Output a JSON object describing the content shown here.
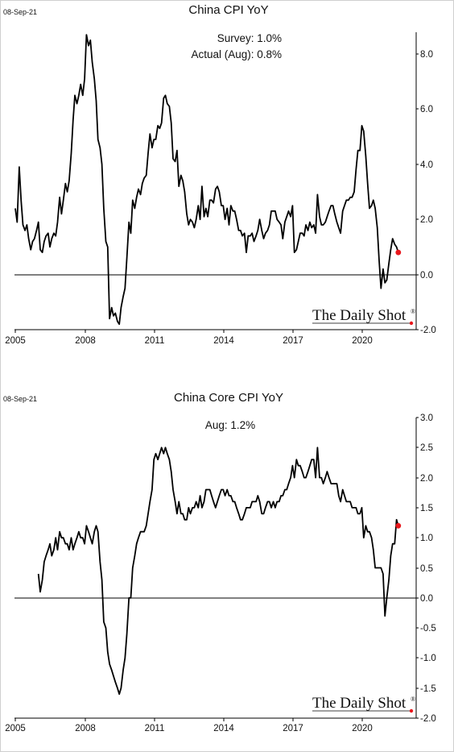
{
  "chart_data": [
    {
      "type": "line",
      "date_stamp": "08-Sep-21",
      "title": "China CPI YoY",
      "annotations": [
        "Survey:  1.0%",
        "Actual (Aug):  0.8%"
      ],
      "brand": "The Daily Shot",
      "brand_mark": "®",
      "x_ticks": [
        "2005",
        "2008",
        "2011",
        "2014",
        "2017",
        "2020"
      ],
      "y_ticks": [
        "8.0",
        "6.0",
        "4.0",
        "2.0",
        "0.0",
        "-2.0"
      ],
      "xlim": [
        2005.0,
        2022.3
      ],
      "ylim": [
        -2.0,
        9.0
      ],
      "grid": false,
      "zero_line": true,
      "line_color": "#000000",
      "marker_color": "#e8171c",
      "series": [
        {
          "x": [
            2005.0,
            2005.08,
            2005.17,
            2005.25,
            2005.33,
            2005.42,
            2005.5,
            2005.58,
            2005.67,
            2005.75,
            2005.83,
            2005.92,
            2006.0,
            2006.08,
            2006.17,
            2006.25,
            2006.33,
            2006.42,
            2006.5,
            2006.58,
            2006.67,
            2006.75,
            2006.83,
            2006.92,
            2007.0,
            2007.08,
            2007.17,
            2007.25,
            2007.33,
            2007.42,
            2007.5,
            2007.58,
            2007.67,
            2007.75,
            2007.83,
            2007.92,
            2008.0,
            2008.08,
            2008.17,
            2008.25,
            2008.33,
            2008.42,
            2008.5,
            2008.58,
            2008.67,
            2008.75,
            2008.83,
            2008.92,
            2009.0,
            2009.08,
            2009.17,
            2009.25,
            2009.33,
            2009.42,
            2009.5,
            2009.58,
            2009.67,
            2009.75,
            2009.83,
            2009.92,
            2010.0,
            2010.08,
            2010.17,
            2010.25,
            2010.33,
            2010.42,
            2010.5,
            2010.58,
            2010.67,
            2010.75,
            2010.83,
            2010.92,
            2011.0,
            2011.08,
            2011.17,
            2011.25,
            2011.33,
            2011.42,
            2011.5,
            2011.58,
            2011.67,
            2011.75,
            2011.83,
            2011.92,
            2012.0,
            2012.08,
            2012.17,
            2012.25,
            2012.33,
            2012.42,
            2012.5,
            2012.58,
            2012.67,
            2012.75,
            2012.83,
            2012.92,
            2013.0,
            2013.08,
            2013.17,
            2013.25,
            2013.33,
            2013.42,
            2013.5,
            2013.58,
            2013.67,
            2013.75,
            2013.83,
            2013.92,
            2014.0,
            2014.08,
            2014.17,
            2014.25,
            2014.33,
            2014.42,
            2014.5,
            2014.58,
            2014.67,
            2014.75,
            2014.83,
            2014.92,
            2015.0,
            2015.08,
            2015.17,
            2015.25,
            2015.33,
            2015.42,
            2015.5,
            2015.58,
            2015.67,
            2015.75,
            2015.83,
            2015.92,
            2016.0,
            2016.08,
            2016.17,
            2016.25,
            2016.33,
            2016.42,
            2016.5,
            2016.58,
            2016.67,
            2016.75,
            2016.83,
            2016.92,
            2017.0,
            2017.08,
            2017.17,
            2017.25,
            2017.33,
            2017.42,
            2017.5,
            2017.58,
            2017.67,
            2017.75,
            2017.83,
            2017.92,
            2018.0,
            2018.08,
            2018.17,
            2018.25,
            2018.33,
            2018.42,
            2018.5,
            2018.58,
            2018.67,
            2018.75,
            2018.83,
            2018.92,
            2019.0,
            2019.08,
            2019.17,
            2019.25,
            2019.33,
            2019.42,
            2019.5,
            2019.58,
            2019.67,
            2019.75,
            2019.83,
            2019.92,
            2020.0,
            2020.08,
            2020.17,
            2020.25,
            2020.33,
            2020.42,
            2020.5,
            2020.58,
            2020.67,
            2020.75,
            2020.83,
            2020.92,
            2021.0,
            2021.08,
            2021.17,
            2021.25,
            2021.33,
            2021.42,
            2021.5,
            2021.58
          ],
          "y": [
            2.4,
            1.9,
            3.9,
            2.7,
            1.8,
            1.6,
            1.8,
            1.3,
            0.9,
            1.2,
            1.3,
            1.6,
            1.9,
            0.9,
            0.8,
            1.2,
            1.4,
            1.5,
            1.0,
            1.3,
            1.5,
            1.4,
            1.9,
            2.8,
            2.2,
            2.7,
            3.3,
            3.0,
            3.4,
            4.4,
            5.6,
            6.5,
            6.2,
            6.5,
            6.9,
            6.5,
            7.1,
            8.7,
            8.3,
            8.5,
            7.7,
            7.1,
            6.3,
            4.9,
            4.6,
            4.0,
            2.4,
            1.2,
            1.0,
            -1.6,
            -1.2,
            -1.5,
            -1.4,
            -1.7,
            -1.8,
            -1.2,
            -0.8,
            -0.5,
            0.6,
            1.9,
            1.5,
            2.7,
            2.4,
            2.8,
            3.1,
            2.9,
            3.3,
            3.5,
            3.6,
            4.4,
            5.1,
            4.6,
            4.9,
            4.9,
            5.4,
            5.3,
            5.5,
            6.4,
            6.5,
            6.2,
            6.1,
            5.5,
            4.2,
            4.1,
            4.5,
            3.2,
            3.6,
            3.4,
            3.0,
            2.2,
            1.8,
            2.0,
            1.9,
            1.7,
            2.0,
            2.5,
            2.0,
            3.2,
            2.1,
            2.4,
            2.1,
            2.7,
            2.7,
            2.6,
            3.1,
            3.2,
            3.0,
            2.5,
            2.5,
            2.0,
            2.4,
            1.8,
            2.5,
            2.3,
            2.3,
            2.0,
            1.6,
            1.6,
            1.4,
            1.5,
            0.8,
            1.4,
            1.4,
            1.5,
            1.2,
            1.4,
            1.6,
            2.0,
            1.6,
            1.3,
            1.5,
            1.6,
            1.8,
            2.3,
            2.3,
            2.3,
            2.0,
            1.9,
            1.8,
            1.3,
            1.9,
            2.1,
            2.3,
            2.1,
            2.5,
            0.8,
            0.9,
            1.2,
            1.5,
            1.5,
            1.4,
            1.8,
            1.6,
            1.9,
            1.7,
            1.8,
            1.5,
            2.9,
            2.1,
            1.8,
            1.8,
            1.9,
            2.1,
            2.3,
            2.5,
            2.5,
            2.2,
            1.9,
            1.7,
            1.5,
            2.3,
            2.5,
            2.7,
            2.7,
            2.8,
            2.8,
            3.0,
            3.8,
            4.5,
            4.5,
            5.4,
            5.2,
            4.3,
            3.3,
            2.4,
            2.5,
            2.7,
            2.4,
            1.7,
            0.5,
            -0.5,
            0.2,
            -0.3,
            -0.2,
            0.4,
            0.9,
            1.3,
            1.1,
            1.0,
            0.8
          ]
        }
      ],
      "last_point": {
        "x": 2021.58,
        "y": 0.8
      }
    },
    {
      "type": "line",
      "date_stamp": "08-Sep-21",
      "title": "China Core CPI YoY",
      "annotations": [
        "Aug:    1.2%"
      ],
      "brand": "The Daily Shot",
      "brand_mark": "®",
      "x_ticks": [
        "2005",
        "2008",
        "2011",
        "2014",
        "2017",
        "2020"
      ],
      "y_ticks": [
        "3.0",
        "2.5",
        "2.0",
        "1.5",
        "1.0",
        "0.5",
        "0.0",
        "-0.5",
        "-1.0",
        "-1.5",
        "-2.0"
      ],
      "xlim": [
        2005.0,
        2022.3
      ],
      "ylim": [
        -2.0,
        3.0
      ],
      "grid": false,
      "zero_line": true,
      "line_color": "#000000",
      "marker_color": "#e8171c",
      "series": [
        {
          "x": [
            2006.0,
            2006.08,
            2006.17,
            2006.25,
            2006.33,
            2006.42,
            2006.5,
            2006.58,
            2006.67,
            2006.75,
            2006.83,
            2006.92,
            2007.0,
            2007.08,
            2007.17,
            2007.25,
            2007.33,
            2007.42,
            2007.5,
            2007.58,
            2007.67,
            2007.75,
            2007.83,
            2007.92,
            2008.0,
            2008.08,
            2008.17,
            2008.25,
            2008.33,
            2008.42,
            2008.5,
            2008.58,
            2008.67,
            2008.75,
            2008.83,
            2008.92,
            2009.0,
            2009.08,
            2009.17,
            2009.25,
            2009.33,
            2009.42,
            2009.5,
            2009.58,
            2009.67,
            2009.75,
            2009.83,
            2009.92,
            2010.0,
            2010.08,
            2010.17,
            2010.25,
            2010.33,
            2010.42,
            2010.5,
            2010.58,
            2010.67,
            2010.75,
            2010.83,
            2010.92,
            2011.0,
            2011.08,
            2011.17,
            2011.25,
            2011.33,
            2011.42,
            2011.5,
            2011.58,
            2011.67,
            2011.75,
            2011.83,
            2011.92,
            2012.0,
            2012.08,
            2012.17,
            2012.25,
            2012.33,
            2012.42,
            2012.5,
            2012.58,
            2012.67,
            2012.75,
            2012.83,
            2012.92,
            2013.0,
            2013.08,
            2013.17,
            2013.25,
            2013.33,
            2013.42,
            2013.5,
            2013.58,
            2013.67,
            2013.75,
            2013.83,
            2013.92,
            2014.0,
            2014.08,
            2014.17,
            2014.25,
            2014.33,
            2014.42,
            2014.5,
            2014.58,
            2014.67,
            2014.75,
            2014.83,
            2014.92,
            2015.0,
            2015.08,
            2015.17,
            2015.25,
            2015.33,
            2015.42,
            2015.5,
            2015.58,
            2015.67,
            2015.75,
            2015.83,
            2015.92,
            2016.0,
            2016.08,
            2016.17,
            2016.25,
            2016.33,
            2016.42,
            2016.5,
            2016.58,
            2016.67,
            2016.75,
            2016.83,
            2016.92,
            2017.0,
            2017.08,
            2017.17,
            2017.25,
            2017.33,
            2017.42,
            2017.5,
            2017.58,
            2017.67,
            2017.75,
            2017.83,
            2017.92,
            2018.0,
            2018.08,
            2018.17,
            2018.25,
            2018.33,
            2018.42,
            2018.5,
            2018.58,
            2018.67,
            2018.75,
            2018.83,
            2018.92,
            2019.0,
            2019.08,
            2019.17,
            2019.25,
            2019.33,
            2019.42,
            2019.5,
            2019.58,
            2019.67,
            2019.75,
            2019.83,
            2019.92,
            2020.0,
            2020.08,
            2020.17,
            2020.25,
            2020.33,
            2020.42,
            2020.5,
            2020.58,
            2020.67,
            2020.75,
            2020.83,
            2020.92,
            2021.0,
            2021.08,
            2021.17,
            2021.25,
            2021.33,
            2021.42,
            2021.5,
            2021.58
          ],
          "y": [
            0.4,
            0.1,
            0.3,
            0.6,
            0.7,
            0.8,
            0.9,
            0.7,
            0.8,
            1.0,
            0.8,
            1.1,
            1.0,
            1.0,
            0.9,
            0.9,
            0.8,
            1.0,
            0.8,
            0.9,
            1.0,
            1.1,
            1.0,
            1.0,
            0.9,
            1.2,
            1.1,
            1.0,
            0.9,
            1.1,
            1.2,
            1.1,
            0.6,
            0.3,
            -0.4,
            -0.5,
            -0.9,
            -1.1,
            -1.2,
            -1.3,
            -1.4,
            -1.5,
            -1.6,
            -1.5,
            -1.2,
            -1.0,
            -0.6,
            0.0,
            0.0,
            0.5,
            0.7,
            0.9,
            1.0,
            1.1,
            1.1,
            1.1,
            1.2,
            1.4,
            1.6,
            1.8,
            2.3,
            2.4,
            2.3,
            2.4,
            2.5,
            2.4,
            2.5,
            2.4,
            2.3,
            2.1,
            1.8,
            1.6,
            1.4,
            1.6,
            1.4,
            1.4,
            1.3,
            1.3,
            1.5,
            1.4,
            1.5,
            1.5,
            1.6,
            1.5,
            1.7,
            1.5,
            1.6,
            1.8,
            1.8,
            1.8,
            1.7,
            1.6,
            1.5,
            1.6,
            1.7,
            1.8,
            1.8,
            1.7,
            1.8,
            1.7,
            1.7,
            1.6,
            1.6,
            1.5,
            1.4,
            1.3,
            1.3,
            1.4,
            1.5,
            1.5,
            1.5,
            1.6,
            1.6,
            1.6,
            1.7,
            1.6,
            1.4,
            1.4,
            1.5,
            1.6,
            1.6,
            1.5,
            1.6,
            1.5,
            1.6,
            1.6,
            1.7,
            1.7,
            1.8,
            1.8,
            1.9,
            2.0,
            2.2,
            2.0,
            2.3,
            2.2,
            2.2,
            2.1,
            2.0,
            2.0,
            2.1,
            2.2,
            2.3,
            2.3,
            2.0,
            2.5,
            2.0,
            2.0,
            1.9,
            2.0,
            2.1,
            2.0,
            1.9,
            1.9,
            1.9,
            1.9,
            1.7,
            1.6,
            1.8,
            1.7,
            1.6,
            1.6,
            1.6,
            1.5,
            1.5,
            1.5,
            1.4,
            1.4,
            1.5,
            1.0,
            1.2,
            1.1,
            1.1,
            1.0,
            0.8,
            0.5,
            0.5,
            0.5,
            0.5,
            0.4,
            -0.3,
            0.0,
            0.3,
            0.7,
            0.9,
            0.9,
            1.3,
            1.2
          ]
        }
      ],
      "last_point": {
        "x": 2021.58,
        "y": 1.2
      }
    }
  ]
}
